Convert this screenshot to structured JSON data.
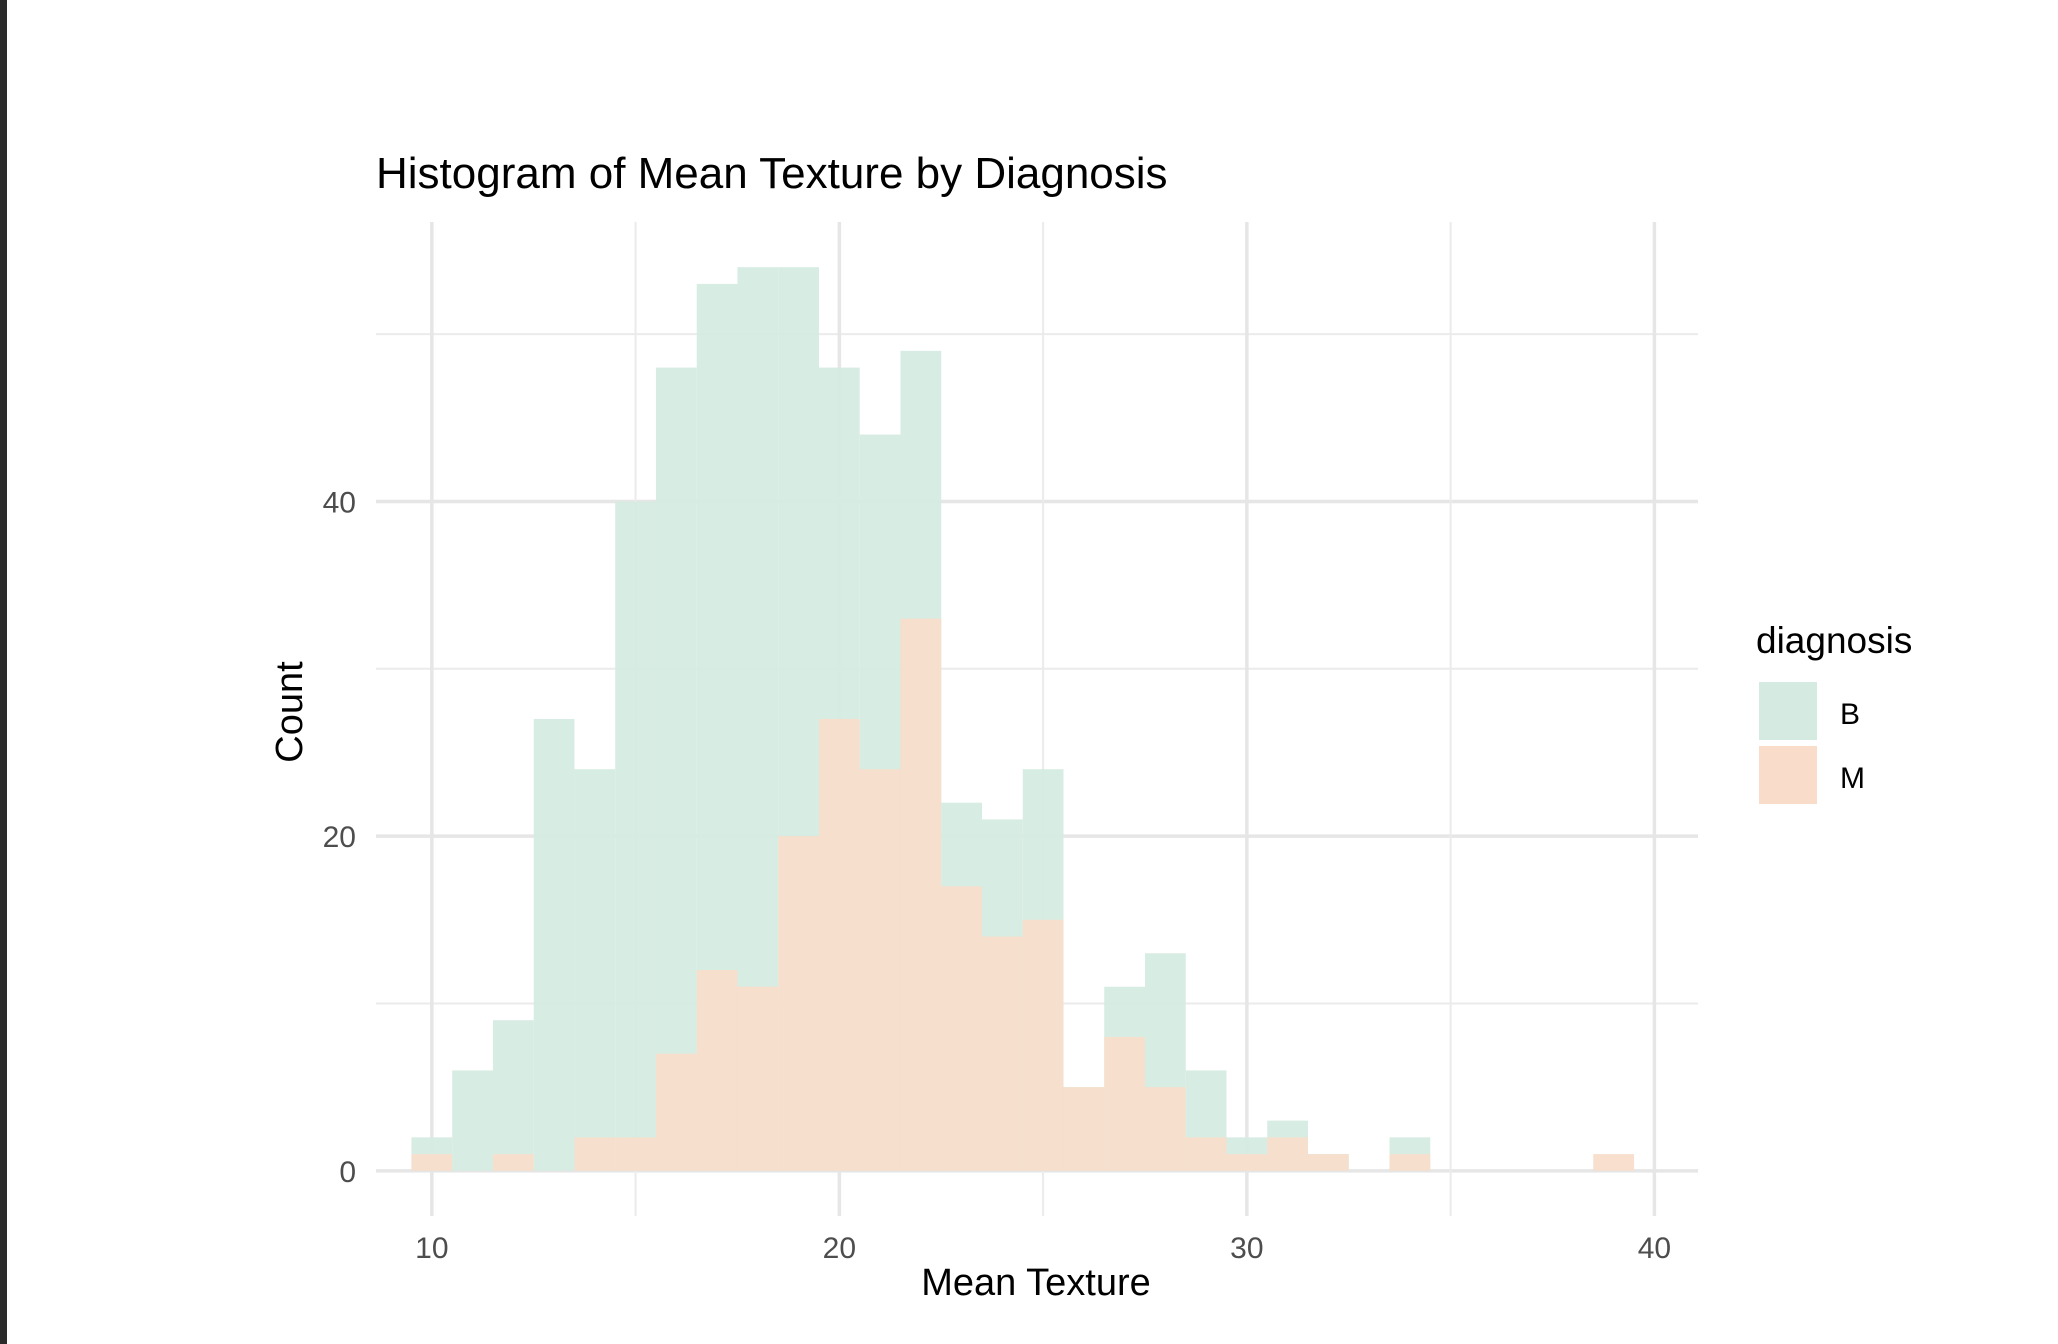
{
  "chart_data": {
    "type": "bar",
    "title": "Histogram of Mean Texture by Diagnosis",
    "xlabel": "Mean Texture",
    "ylabel": "Count",
    "xlim": [
      8.63,
      41.07
    ],
    "ylim": [
      -2.7,
      56.7
    ],
    "x_ticks": [
      10,
      20,
      30,
      40
    ],
    "y_ticks": [
      0,
      20,
      40
    ],
    "bin_width": 1.0,
    "stacked": false,
    "grid": true,
    "legend": {
      "title": "diagnosis",
      "position": "right"
    },
    "series": [
      {
        "name": "B",
        "color": "#d5ebe1",
        "bins": [
          {
            "x0": 9.5,
            "value": 2
          },
          {
            "x0": 10.5,
            "value": 6
          },
          {
            "x0": 11.5,
            "value": 9
          },
          {
            "x0": 12.5,
            "value": 27
          },
          {
            "x0": 13.5,
            "value": 24
          },
          {
            "x0": 14.5,
            "value": 40
          },
          {
            "x0": 15.5,
            "value": 48
          },
          {
            "x0": 16.5,
            "value": 53
          },
          {
            "x0": 17.5,
            "value": 54
          },
          {
            "x0": 18.5,
            "value": 54
          },
          {
            "x0": 19.5,
            "value": 48
          },
          {
            "x0": 20.5,
            "value": 44
          },
          {
            "x0": 21.5,
            "value": 49
          },
          {
            "x0": 22.5,
            "value": 22
          },
          {
            "x0": 23.5,
            "value": 21
          },
          {
            "x0": 24.5,
            "value": 24
          },
          {
            "x0": 25.5,
            "value": 5
          },
          {
            "x0": 26.5,
            "value": 11
          },
          {
            "x0": 27.5,
            "value": 13
          },
          {
            "x0": 28.5,
            "value": 6
          },
          {
            "x0": 29.5,
            "value": 2
          },
          {
            "x0": 30.5,
            "value": 3
          },
          {
            "x0": 31.5,
            "value": 1
          },
          {
            "x0": 32.5,
            "value": 0
          },
          {
            "x0": 33.5,
            "value": 2
          },
          {
            "x0": 34.5,
            "value": 0
          },
          {
            "x0": 35.5,
            "value": 0
          },
          {
            "x0": 36.5,
            "value": 0
          },
          {
            "x0": 37.5,
            "value": 0
          },
          {
            "x0": 38.5,
            "value": 0
          }
        ]
      },
      {
        "name": "M",
        "color": "#f9ddca",
        "bins": [
          {
            "x0": 9.5,
            "value": 1
          },
          {
            "x0": 10.5,
            "value": 0
          },
          {
            "x0": 11.5,
            "value": 1
          },
          {
            "x0": 12.5,
            "value": 0
          },
          {
            "x0": 13.5,
            "value": 2
          },
          {
            "x0": 14.5,
            "value": 2
          },
          {
            "x0": 15.5,
            "value": 7
          },
          {
            "x0": 16.5,
            "value": 12
          },
          {
            "x0": 17.5,
            "value": 11
          },
          {
            "x0": 18.5,
            "value": 20
          },
          {
            "x0": 19.5,
            "value": 27
          },
          {
            "x0": 20.5,
            "value": 24
          },
          {
            "x0": 21.5,
            "value": 33
          },
          {
            "x0": 22.5,
            "value": 17
          },
          {
            "x0": 23.5,
            "value": 14
          },
          {
            "x0": 24.5,
            "value": 15
          },
          {
            "x0": 25.5,
            "value": 5
          },
          {
            "x0": 26.5,
            "value": 8
          },
          {
            "x0": 27.5,
            "value": 5
          },
          {
            "x0": 28.5,
            "value": 2
          },
          {
            "x0": 29.5,
            "value": 1
          },
          {
            "x0": 30.5,
            "value": 2
          },
          {
            "x0": 31.5,
            "value": 1
          },
          {
            "x0": 32.5,
            "value": 0
          },
          {
            "x0": 33.5,
            "value": 1
          },
          {
            "x0": 34.5,
            "value": 0
          },
          {
            "x0": 35.5,
            "value": 0
          },
          {
            "x0": 36.5,
            "value": 0
          },
          {
            "x0": 37.5,
            "value": 0
          },
          {
            "x0": 38.5,
            "value": 1
          }
        ]
      }
    ]
  }
}
